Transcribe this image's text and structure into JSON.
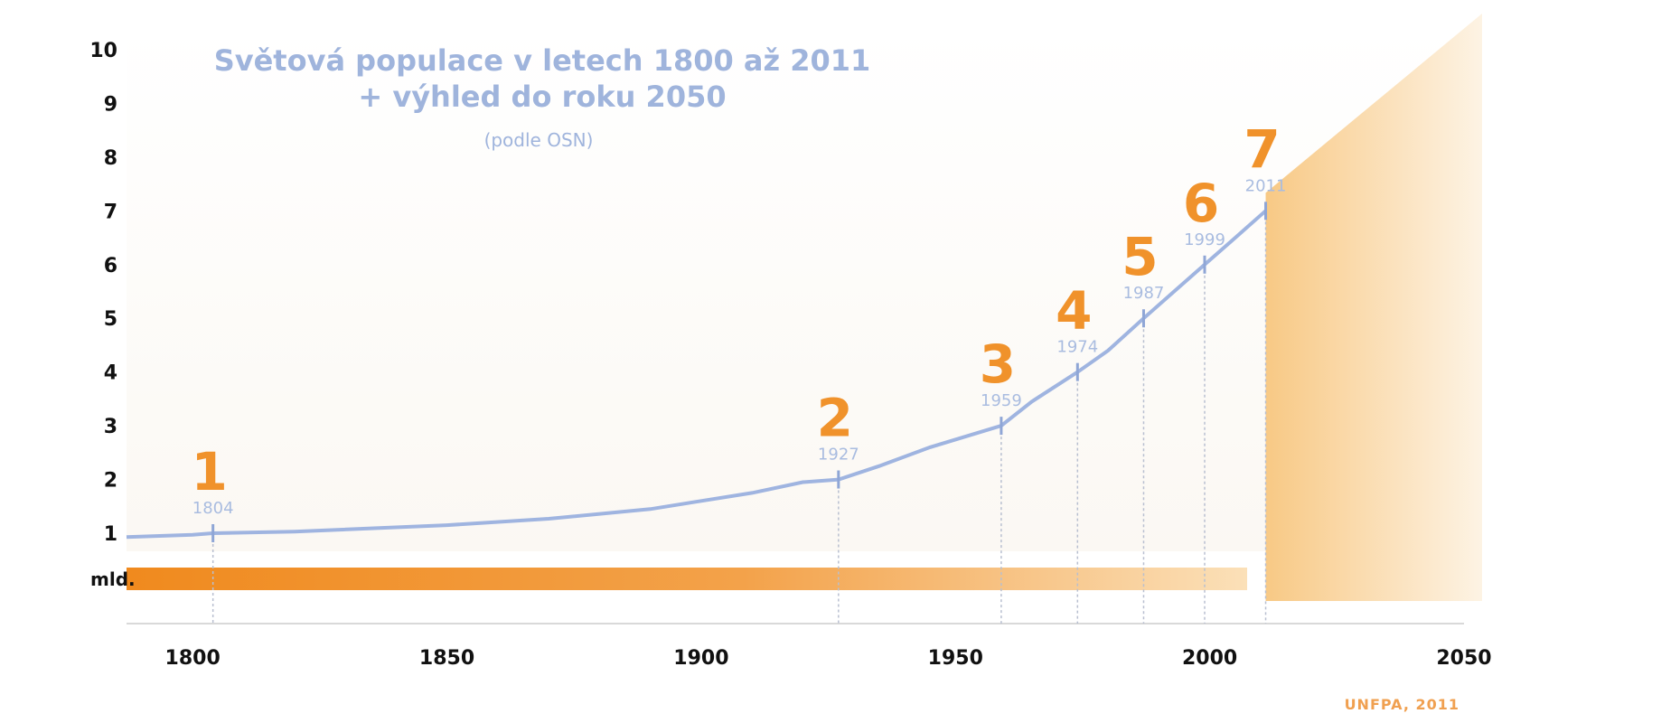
{
  "chart_data": {
    "type": "line",
    "title_line1": "Světová populace v letech 1800 až 2011",
    "title_line2": "+ výhled do roku 2050",
    "subtitle": "(podle OSN)",
    "source": "UNFPA, 2011",
    "y_unit_label": "mld.",
    "xlim": [
      1787,
      2050
    ],
    "ylim": [
      0,
      10
    ],
    "x_ticks": [
      1800,
      1850,
      1900,
      1950,
      2000,
      2050
    ],
    "y_ticks": [
      1,
      2,
      3,
      4,
      5,
      6,
      7,
      8,
      9,
      10
    ],
    "series": [
      {
        "x": [
          1787,
          1800,
          1804,
          1820,
          1850,
          1870,
          1890,
          1900,
          1910,
          1920,
          1927,
          1935,
          1945,
          1959,
          1965,
          1974,
          1980,
          1987,
          1993,
          1999,
          2005,
          2011
        ],
        "values": [
          0.93,
          0.97,
          1.0,
          1.03,
          1.15,
          1.27,
          1.45,
          1.6,
          1.75,
          1.95,
          2.0,
          2.25,
          2.6,
          3.0,
          3.45,
          4.0,
          4.4,
          5.0,
          5.5,
          6.0,
          6.5,
          7.0
        ]
      }
    ],
    "milestones": [
      {
        "billion": "1",
        "year": "1804",
        "x": 1804,
        "y": 1
      },
      {
        "billion": "2",
        "year": "1927",
        "x": 1927,
        "y": 2
      },
      {
        "billion": "3",
        "year": "1959",
        "x": 1959,
        "y": 3
      },
      {
        "billion": "4",
        "year": "1974",
        "x": 1974,
        "y": 4
      },
      {
        "billion": "5",
        "year": "1987",
        "x": 1987,
        "y": 5
      },
      {
        "billion": "6",
        "year": "1999",
        "x": 1999,
        "y": 6
      },
      {
        "billion": "7",
        "year": "2011",
        "x": 2011,
        "y": 7
      }
    ],
    "projection": {
      "from_year": 2011,
      "to_year": 2050,
      "from_value": 7,
      "to_value": 10
    },
    "colors": {
      "line": "#9fb4e0",
      "accent": "#f0922b",
      "projection": "#f8c985",
      "title": "#9fb4dc"
    }
  }
}
